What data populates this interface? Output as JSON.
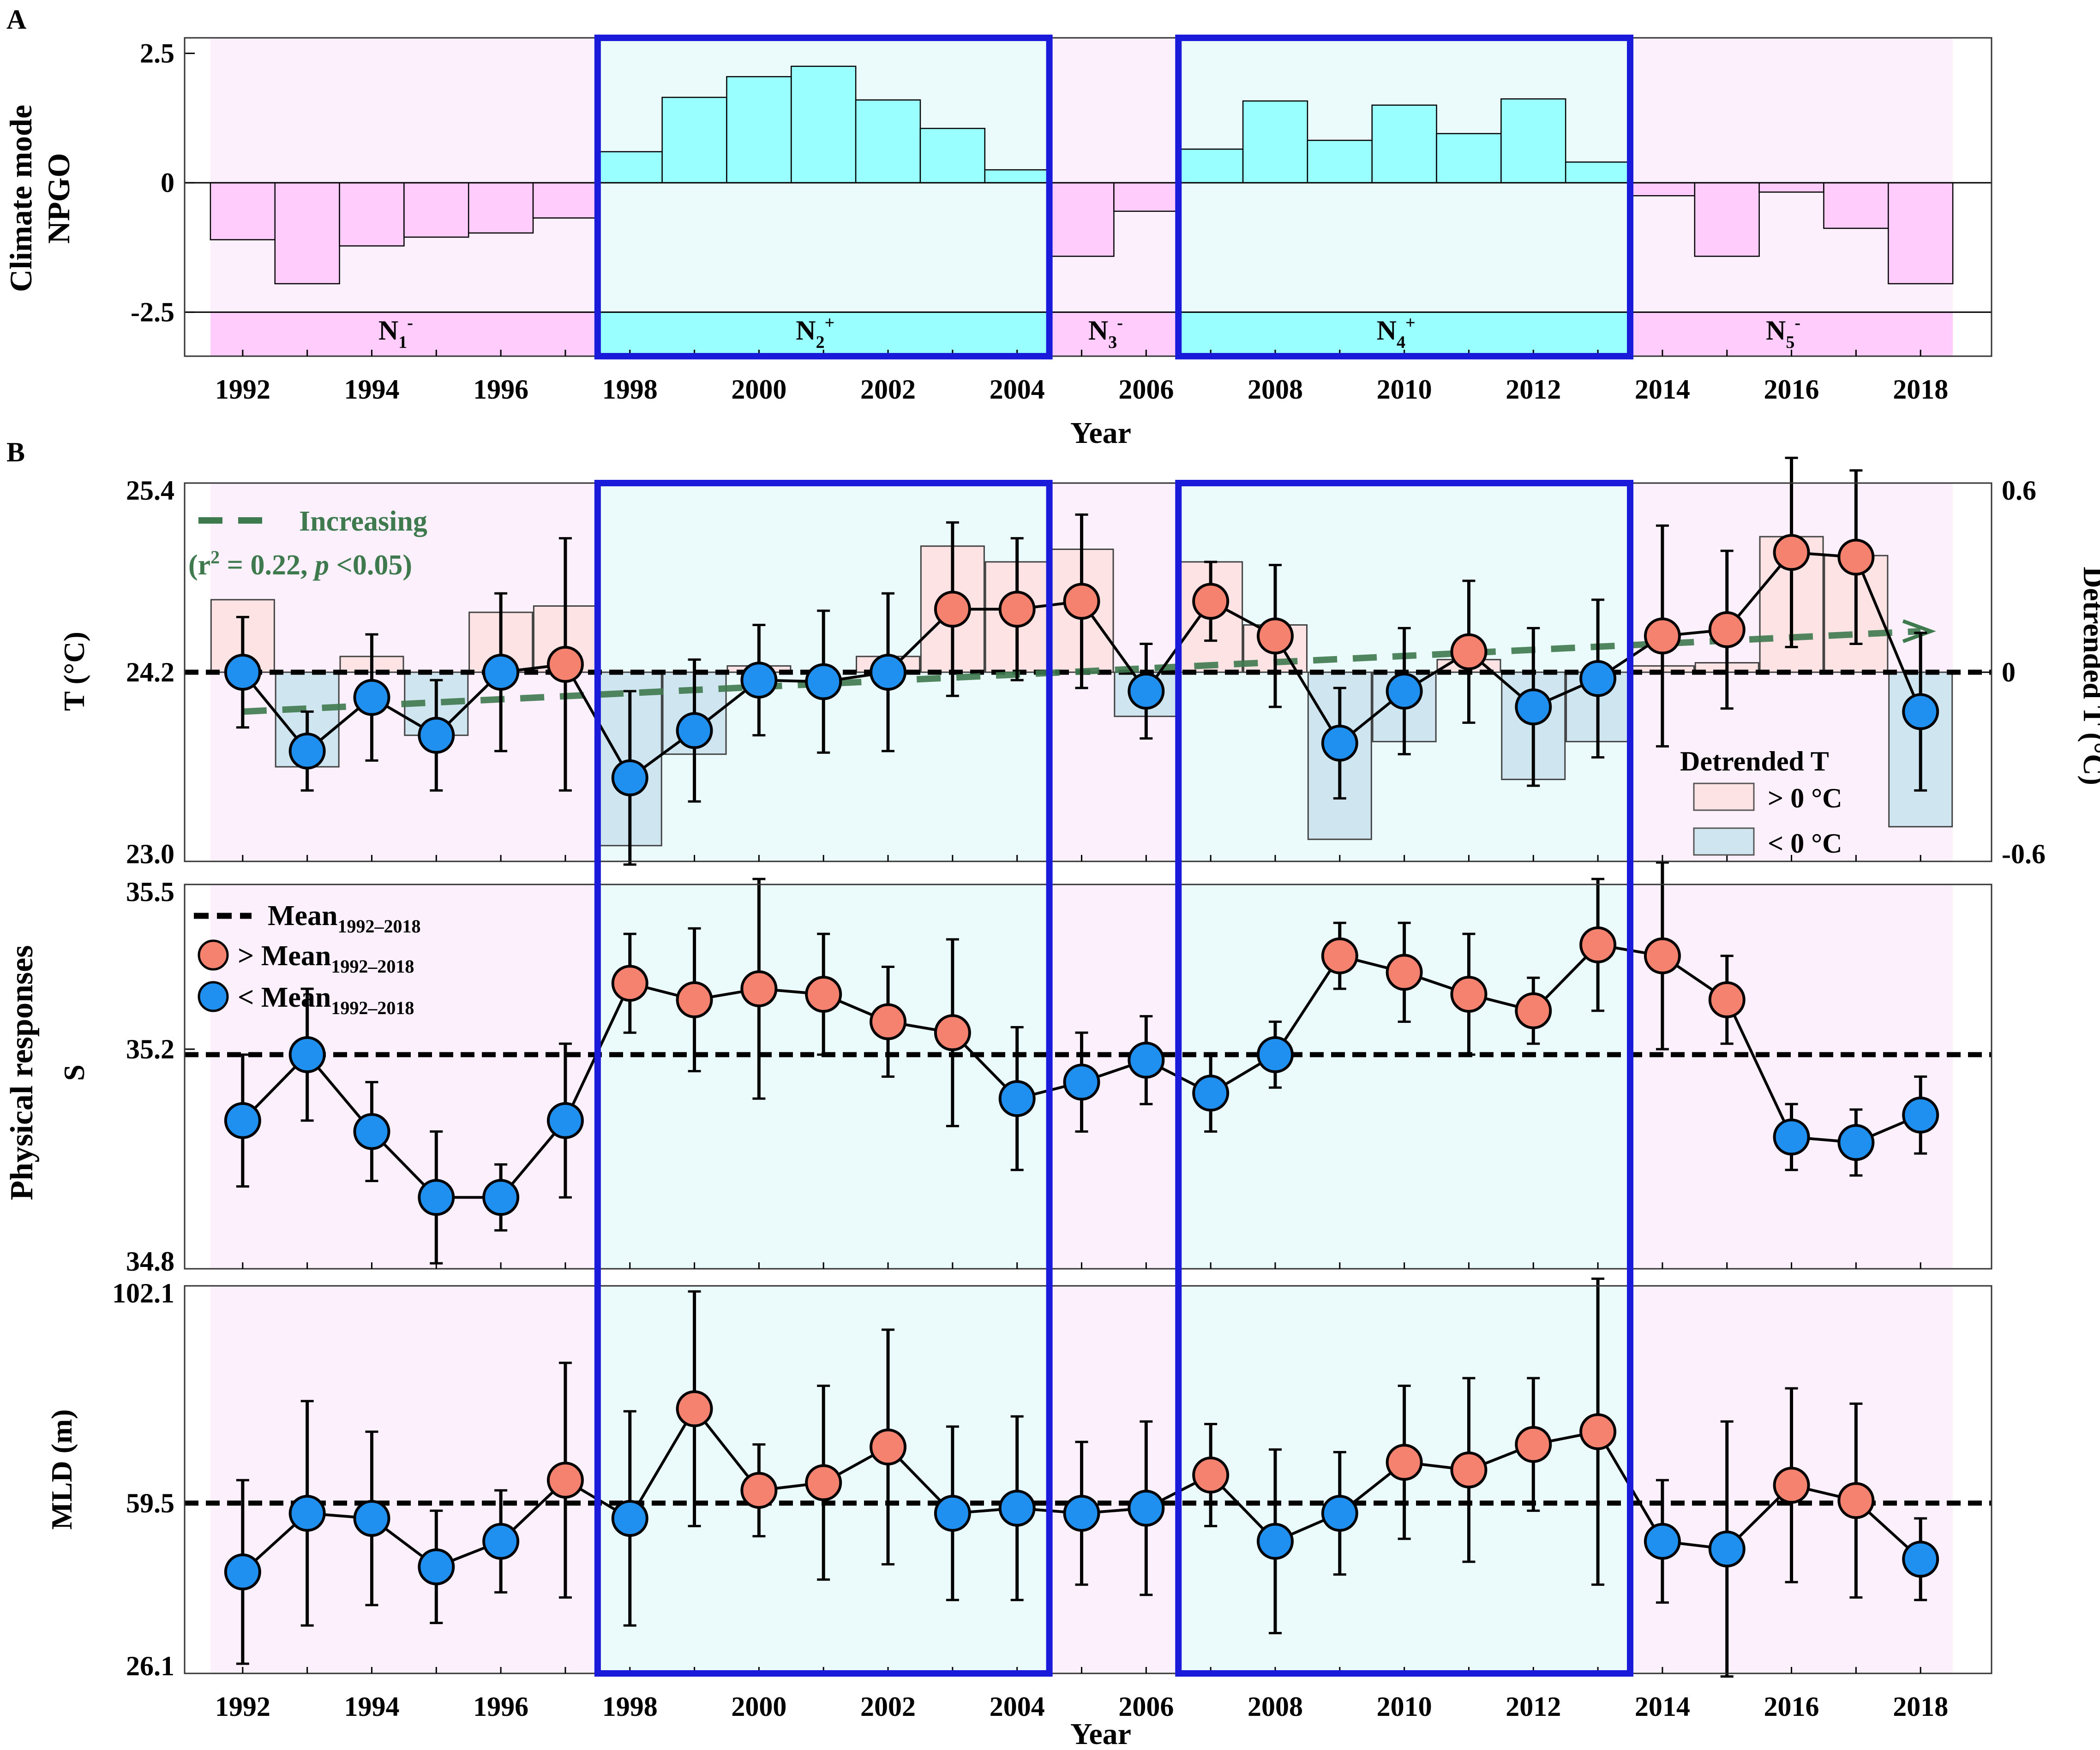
{
  "colors": {
    "positive_bg": "#fbf0fb",
    "negative_bg": "#ebfbfb",
    "pos_bar": "#ffccfb",
    "neg_bar": "#99ffff",
    "box": "#1a1adb",
    "above_mean": "#f4826f",
    "below_mean": "#1f8ff0",
    "warm_bar": "#fde3e3",
    "cool_bar": "#cfe6f1",
    "trend": "#3f7a4f"
  },
  "panelA": {
    "label": "A"
  },
  "panelB": {
    "label": "B",
    "ylabel_group": "Physical responses"
  },
  "chart_data": [
    {
      "id": "npgo",
      "type": "bar",
      "title": "",
      "ylabel": "Climate mode NPGO",
      "ylabel_line1": "Climate mode",
      "ylabel_line2": "NPGO",
      "xlabel": "Year",
      "ylim": [
        -2.5,
        2.5
      ],
      "yticks": [
        {
          "value": 2.5,
          "label": "2.5"
        },
        {
          "value": 0,
          "label": "0"
        },
        {
          "value": -2.5,
          "label": "-2.5"
        }
      ],
      "xticks": [
        "1992",
        "1994",
        "1996",
        "1998",
        "2000",
        "2002",
        "2004",
        "2006",
        "2008",
        "2010",
        "2012",
        "2014",
        "2016",
        "2018"
      ],
      "x": [
        1992,
        1993,
        1994,
        1995,
        1996,
        1997,
        1998,
        1999,
        2000,
        2001,
        2002,
        2003,
        2004,
        2005,
        2006,
        2007,
        2008,
        2009,
        2010,
        2011,
        2012,
        2013,
        2014,
        2015,
        2016,
        2017,
        2018
      ],
      "values": [
        -1.1,
        -1.95,
        -1.22,
        -1.05,
        -0.97,
        -0.68,
        0.6,
        1.65,
        2.05,
        2.25,
        1.6,
        1.05,
        0.25,
        -1.42,
        -0.55,
        0.65,
        1.58,
        0.82,
        1.5,
        0.95,
        1.62,
        0.4,
        -0.25,
        -1.42,
        -0.18,
        -0.88,
        -1.95
      ],
      "phases": [
        {
          "name": "N",
          "sub": "1",
          "sup": "-",
          "start": 1991.5,
          "end": 1997.5,
          "sign": "negative"
        },
        {
          "name": "N",
          "sub": "2",
          "sup": "+",
          "start": 1997.5,
          "end": 2004.5,
          "sign": "positive"
        },
        {
          "name": "N",
          "sub": "3",
          "sup": "-",
          "start": 2004.5,
          "end": 2006.5,
          "sign": "negative"
        },
        {
          "name": "N",
          "sub": "4",
          "sup": "+",
          "start": 2006.5,
          "end": 2013.5,
          "sign": "positive"
        },
        {
          "name": "N",
          "sub": "5",
          "sup": "-",
          "start": 2013.5,
          "end": 2018.5,
          "sign": "negative"
        }
      ]
    },
    {
      "id": "temperature",
      "type": "line",
      "ylabel": "T (°C)",
      "ylabel_right": "Detrended T (°C)",
      "ylim": [
        23.0,
        25.4
      ],
      "ylim_right": [
        -0.6,
        0.6
      ],
      "yticks": [
        "25.4",
        "24.2",
        "23.0"
      ],
      "yticks_right": [
        "0.6",
        "0",
        "-0.6"
      ],
      "mean": 24.2,
      "x": [
        1992,
        1993,
        1994,
        1995,
        1996,
        1997,
        1998,
        1999,
        2000,
        2001,
        2002,
        2003,
        2004,
        2005,
        2006,
        2007,
        2008,
        2009,
        2010,
        2011,
        2012,
        2013,
        2014,
        2015,
        2016,
        2017,
        2018
      ],
      "values": [
        24.2,
        23.7,
        24.04,
        23.8,
        24.2,
        24.25,
        23.53,
        23.83,
        24.15,
        24.14,
        24.2,
        24.6,
        24.6,
        24.65,
        24.08,
        24.65,
        24.43,
        23.75,
        24.08,
        24.33,
        23.98,
        24.16,
        24.43,
        24.47,
        24.96,
        24.93,
        23.95
      ],
      "errors": [
        0.35,
        0.25,
        0.4,
        0.35,
        0.5,
        0.8,
        0.55,
        0.45,
        0.35,
        0.45,
        0.5,
        0.55,
        0.45,
        0.55,
        0.3,
        0.25,
        0.45,
        0.35,
        0.4,
        0.45,
        0.5,
        0.5,
        0.7,
        0.5,
        0.6,
        0.55,
        0.5
      ],
      "detrended_label": "Detrended T",
      "detrended": [
        0.23,
        -0.3,
        0.05,
        -0.2,
        0.19,
        0.21,
        -0.55,
        -0.26,
        0.02,
        0.0,
        0.05,
        0.4,
        0.35,
        0.39,
        -0.14,
        0.35,
        0.15,
        -0.53,
        -0.22,
        0.04,
        -0.34,
        -0.22,
        0.02,
        0.03,
        0.43,
        0.37,
        -0.49
      ],
      "legend_pos": "> 0 °C",
      "legend_neg": "< 0 °C",
      "trend": {
        "label": "Increasing",
        "stats_prefix": "(r",
        "stats_sup": "2",
        "stats_mid": " = 0.22, ",
        "stats_p": "p",
        "stats_suffix": " <0.05)",
        "x": [
          1992,
          2018
        ],
        "y": [
          23.95,
          24.46
        ]
      }
    },
    {
      "id": "salinity",
      "type": "line",
      "ylabel": "S",
      "ylim": [
        34.8,
        35.5
      ],
      "yticks": [
        "35.5",
        "35.2",
        "34.8"
      ],
      "mean": 35.19,
      "x": [
        1992,
        1993,
        1994,
        1995,
        1996,
        1997,
        1998,
        1999,
        2000,
        2001,
        2002,
        2003,
        2004,
        2005,
        2006,
        2007,
        2008,
        2009,
        2010,
        2011,
        2012,
        2013,
        2014,
        2015,
        2016,
        2017,
        2018
      ],
      "values": [
        35.07,
        35.19,
        35.05,
        34.93,
        34.93,
        35.07,
        35.32,
        35.29,
        35.31,
        35.3,
        35.25,
        35.23,
        35.11,
        35.14,
        35.18,
        35.12,
        35.19,
        35.37,
        35.34,
        35.3,
        35.27,
        35.39,
        35.37,
        35.29,
        35.04,
        35.03,
        35.08
      ],
      "errors": [
        0.12,
        0.12,
        0.09,
        0.12,
        0.06,
        0.14,
        0.09,
        0.13,
        0.2,
        0.11,
        0.1,
        0.17,
        0.13,
        0.09,
        0.08,
        0.07,
        0.06,
        0.06,
        0.09,
        0.11,
        0.06,
        0.12,
        0.17,
        0.08,
        0.06,
        0.06,
        0.07
      ],
      "legend": {
        "mean": "Mean",
        "above": "> Mean",
        "below": "< Mean",
        "sub": "1992–2018"
      }
    },
    {
      "id": "mld",
      "type": "line",
      "ylabel": "MLD (m)",
      "ylim": [
        26.1,
        102.1
      ],
      "yticks": [
        "102.1",
        "59.5",
        "26.1"
      ],
      "mean": 59.5,
      "xlabel": "Year",
      "xticks": [
        "1992",
        "1994",
        "1996",
        "1998",
        "2000",
        "2002",
        "2004",
        "2006",
        "2008",
        "2010",
        "2012",
        "2014",
        "2016",
        "2018"
      ],
      "x": [
        1992,
        1993,
        1994,
        1995,
        1996,
        1997,
        1998,
        1999,
        2000,
        2001,
        2002,
        2003,
        2004,
        2005,
        2006,
        2007,
        2008,
        2009,
        2010,
        2011,
        2012,
        2013,
        2014,
        2015,
        2016,
        2017,
        2018
      ],
      "values": [
        46.0,
        57.5,
        56.5,
        47.0,
        52.0,
        64.0,
        56.5,
        78.0,
        62.0,
        63.5,
        70.5,
        57.5,
        58.5,
        57.5,
        58.5,
        65.0,
        52.0,
        57.5,
        67.5,
        66.0,
        71.0,
        73.5,
        52.0,
        50.5,
        63.0,
        60.0,
        48.5
      ],
      "errors": [
        18,
        22,
        17,
        11,
        10,
        23,
        21,
        23,
        9,
        19,
        23,
        17,
        18,
        14,
        17,
        10,
        18,
        12,
        15,
        18,
        13,
        30,
        12,
        25,
        19,
        19,
        8
      ]
    }
  ]
}
